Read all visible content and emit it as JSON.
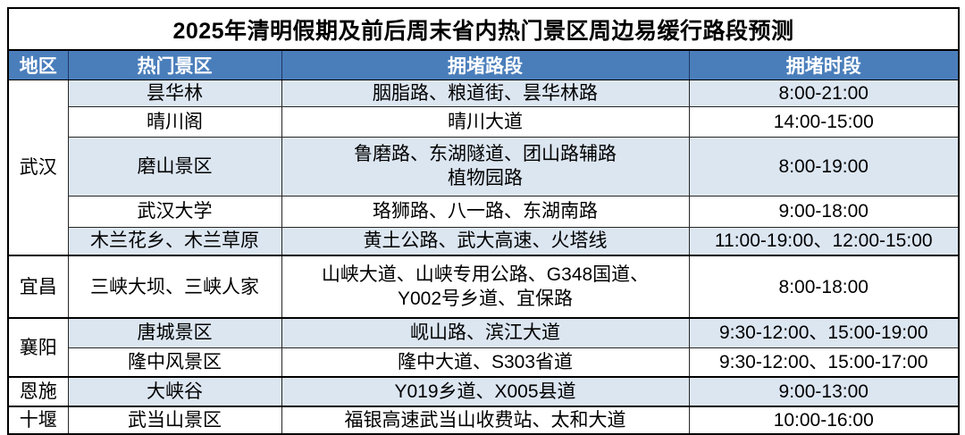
{
  "title": "2025年清明假期及前后周末省内热门景区周边易缓行路段预测",
  "table": {
    "headers": [
      "地区",
      "热门景区",
      "拥堵路段",
      "拥堵时段"
    ],
    "regions": [
      {
        "name": "武汉",
        "rows": [
          {
            "spot": "昙华林",
            "roads": "胭脂路、粮道街、昙华林路",
            "time": "8:00-21:00"
          },
          {
            "spot": "晴川阁",
            "roads": "晴川大道",
            "time": "14:00-15:00"
          },
          {
            "spot": "磨山景区",
            "roads": "鲁磨路、东湖隧道、团山路辅路\n植物园路",
            "time": "8:00-19:00"
          },
          {
            "spot": "武汉大学",
            "roads": "珞狮路、八一路、东湖南路",
            "time": "9:00-18:00"
          },
          {
            "spot": "木兰花乡、木兰草原",
            "roads": "黄土公路、武大高速、火塔线",
            "time": "11:00-19:00、12:00-15:00"
          }
        ]
      },
      {
        "name": "宜昌",
        "rows": [
          {
            "spot": "三峡大坝、三峡人家",
            "roads": "山峡大道、山峡专用公路、G348国道、\nY002号乡道、宜保路",
            "time": "8:00-18:00"
          }
        ]
      },
      {
        "name": "襄阳",
        "rows": [
          {
            "spot": "唐城景区",
            "roads": "岘山路、滨江大道",
            "time": "9:30-12:00、15:00-19:00"
          },
          {
            "spot": "隆中风景区",
            "roads": "隆中大道、S303省道",
            "time": "9:30-12:00、15:00-17:00"
          }
        ]
      },
      {
        "name": "恩施",
        "rows": [
          {
            "spot": "大峡谷",
            "roads": "Y019乡道、X005县道",
            "time": "9:00-13:00"
          }
        ]
      },
      {
        "name": "十堰",
        "rows": [
          {
            "spot": "武当山景区",
            "roads": "福银高速武当山收费站、太和大道",
            "time": "10:00-16:00"
          }
        ]
      }
    ]
  },
  "colors": {
    "header_bg": "#4a7ebb",
    "header_text": "#ffffff",
    "row_alt_bg": "#dce6f1",
    "row_bg": "#ffffff",
    "border": "#000000",
    "title_text": "#000000"
  }
}
